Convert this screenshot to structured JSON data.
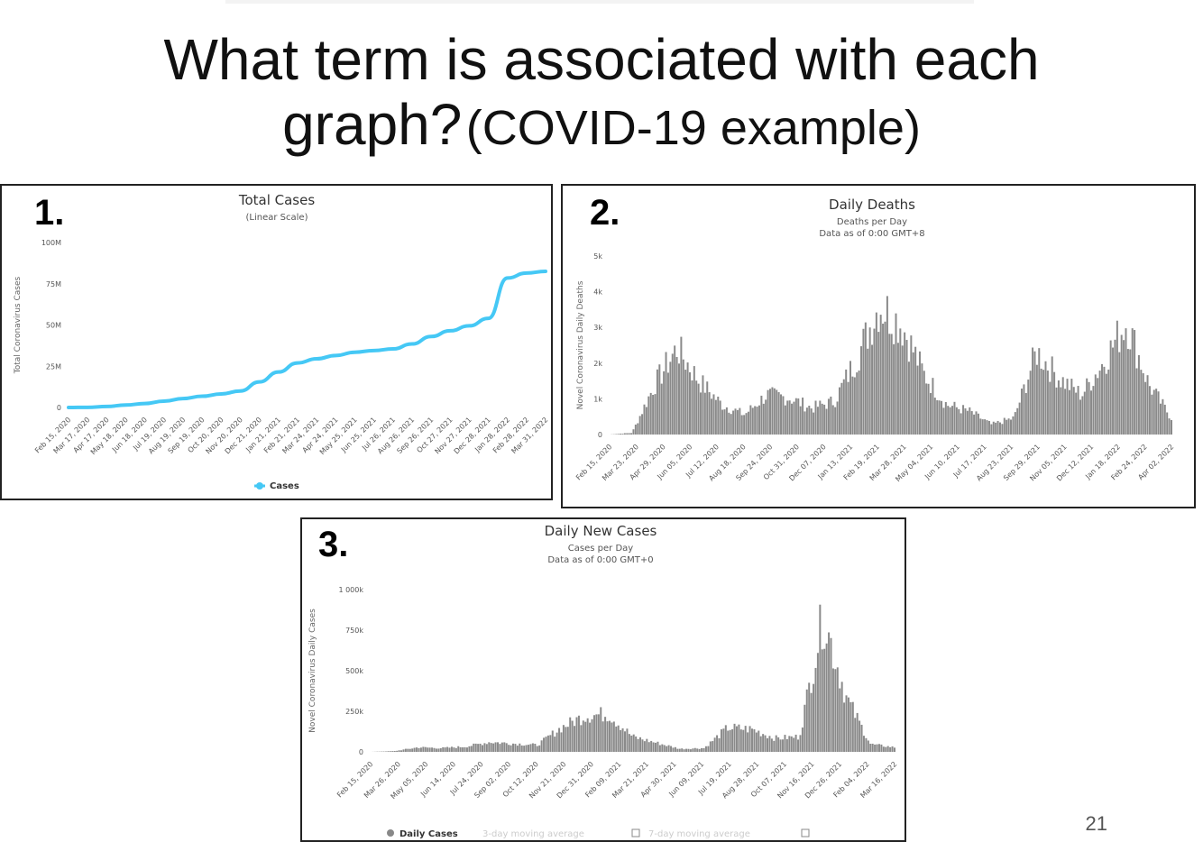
{
  "slide": {
    "title_line1": "What term is associated with each",
    "title_line2_a": "graph?",
    "title_line2_b": "(COVID-19 example)",
    "page_number": "21"
  },
  "chart_data": [
    {
      "panel_number": "1.",
      "type": "line",
      "title": "Total Cases",
      "subtitle": "(Linear Scale)",
      "ylabel": "Total Coronavirus Cases",
      "ylim": [
        0,
        100000000
      ],
      "y_ticks": [
        "0",
        "25M",
        "50M",
        "75M",
        "100M"
      ],
      "x_ticks": [
        "Feb 15, 2020",
        "Mar 17, 2020",
        "Apr 17, 2020",
        "May 18, 2020",
        "Jun 18, 2020",
        "Jul 19, 2020",
        "Aug 19, 2020",
        "Sep 19, 2020",
        "Oct 20, 2020",
        "Nov 20, 2020",
        "Dec 21, 2020",
        "Jan 21, 2021",
        "Feb 21, 2021",
        "Mar 24, 2021",
        "Apr 24, 2021",
        "May 25, 2021",
        "Jun 25, 2021",
        "Jul 26, 2021",
        "Aug 26, 2021",
        "Sep 26, 2021",
        "Oct 27, 2021",
        "Nov 27, 2021",
        "Dec 28, 2021",
        "Jan 28, 2022",
        "Feb 28, 2022",
        "Mar 31, 2022"
      ],
      "series": [
        {
          "name": "Cases",
          "color": "#45c8f5",
          "values": [
            0,
            100000,
            600000,
            1500000,
            2400000,
            3800000,
            5400000,
            6800000,
            8200000,
            10000000,
            15500000,
            21500000,
            27000000,
            29500000,
            31500000,
            33500000,
            34500000,
            35500000,
            38500000,
            43000000,
            46500000,
            49500000,
            54000000,
            78500000,
            81500000,
            82500000
          ]
        }
      ],
      "legend": "bottom-center"
    },
    {
      "panel_number": "2.",
      "type": "bar",
      "title": "Daily Deaths",
      "subtitle": "Deaths per Day",
      "subtitle2": "Data as of 0:00 GMT+8",
      "ylabel": "Novel Coronavirus Daily Deaths",
      "ylim": [
        0,
        5000
      ],
      "y_ticks": [
        "0",
        "1k",
        "2k",
        "3k",
        "4k",
        "5k"
      ],
      "x_ticks": [
        "Feb 15, 2020",
        "Mar 23, 2020",
        "Apr 29, 2020",
        "Jun 05, 2020",
        "Jul 12, 2020",
        "Aug 18, 2020",
        "Sep 24, 2020",
        "Oct 31, 2020",
        "Dec 07, 2020",
        "Jan 13, 2021",
        "Feb 19, 2021",
        "Mar 28, 2021",
        "May 04, 2021",
        "Jun 10, 2021",
        "Jul 17, 2021",
        "Aug 23, 2021",
        "Sep 29, 2021",
        "Nov 05, 2021",
        "Dec 12, 2021",
        "Jan 18, 2022",
        "Feb 24, 2022",
        "Apr 02, 2022"
      ],
      "bar_color": "#8a8a8a",
      "values": [
        0,
        50,
        1500,
        2600,
        1600,
        900,
        600,
        1200,
        1100,
        800,
        1000,
        2300,
        3900,
        3300,
        1800,
        900,
        700,
        300,
        500,
        2500,
        1700,
        1200,
        2200,
        3400,
        1500,
        500
      ]
    },
    {
      "panel_number": "3.",
      "type": "bar",
      "title": "Daily New Cases",
      "subtitle": "Cases per Day",
      "subtitle2": "Data as of 0:00 GMT+0",
      "ylabel": "Novel Coronavirus Daily Cases",
      "ylim": [
        0,
        1000000
      ],
      "y_ticks": [
        "0",
        "250k",
        "500k",
        "750k",
        "1 000k"
      ],
      "x_ticks": [
        "Feb 15, 2020",
        "Mar 26, 2020",
        "May 05, 2020",
        "Jun 14, 2020",
        "Jul 24, 2020",
        "Sep 02, 2020",
        "Oct 12, 2020",
        "Nov 21, 2020",
        "Dec 31, 2020",
        "Feb 09, 2021",
        "Mar 21, 2021",
        "Apr 30, 2021",
        "Jun 09, 2021",
        "Jul 19, 2021",
        "Aug 28, 2021",
        "Oct 07, 2021",
        "Nov 16, 2021",
        "Dec 26, 2021",
        "Feb 04, 2022",
        "Mar 16, 2022"
      ],
      "bar_color": "#8a8a8a",
      "values": [
        0,
        5000,
        30000,
        25000,
        35000,
        65000,
        55000,
        45000,
        160000,
        240000,
        250000,
        100000,
        60000,
        20000,
        25000,
        160000,
        150000,
        90000,
        100000,
        900000,
        350000,
        50000,
        30000
      ],
      "legend": [
        "Daily Cases",
        "3-day moving average",
        "7-day moving average"
      ]
    }
  ]
}
